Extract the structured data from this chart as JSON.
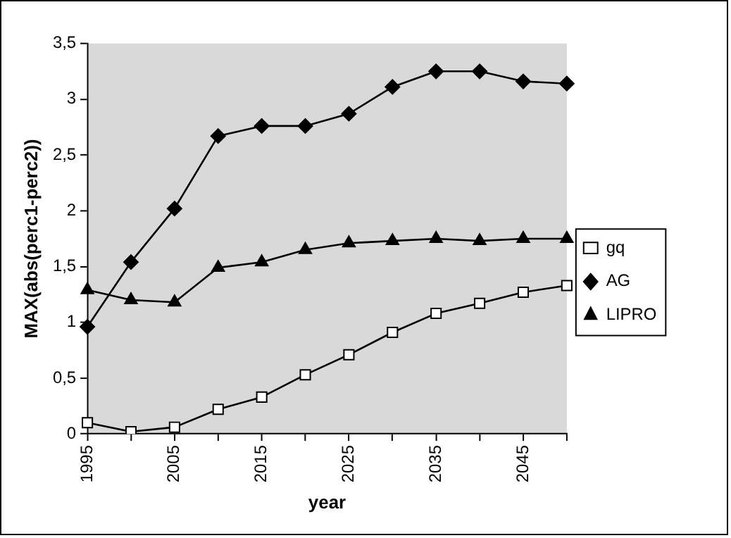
{
  "chart_data": {
    "type": "line",
    "xlabel": "year",
    "ylabel": "MAX(abs(perc1-perc2))",
    "categories": [
      "1995",
      null,
      "2005",
      null,
      "2015",
      null,
      "2025",
      null,
      "2035",
      null,
      "2045",
      null
    ],
    "series": [
      {
        "name": "gq",
        "color": "#000000",
        "marker": "square",
        "values": [
          0.1,
          0.02,
          0.06,
          0.22,
          0.33,
          0.53,
          0.71,
          0.91,
          1.08,
          1.17,
          1.27,
          1.33
        ]
      },
      {
        "name": "AG",
        "color": "#000000",
        "marker": "diamond",
        "values": [
          0.96,
          1.54,
          2.02,
          2.67,
          2.76,
          2.76,
          2.87,
          3.11,
          3.25,
          3.25,
          3.16,
          3.14
        ]
      },
      {
        "name": "LIPRO",
        "color": "#000000",
        "marker": "triangle",
        "values": [
          1.29,
          1.2,
          1.18,
          1.49,
          1.54,
          1.65,
          1.71,
          1.73,
          1.75,
          1.73,
          1.75,
          1.75
        ]
      }
    ],
    "ylim": [
      0,
      3.5
    ],
    "yticks": [
      0,
      {
        "value": 0.5,
        "label": "0,5"
      },
      1,
      {
        "value": 1.5,
        "label": "1,5"
      },
      2,
      {
        "value": 2.5,
        "label": "2,5"
      },
      3,
      {
        "value": 3.5,
        "label": "3,5"
      }
    ],
    "grid": false,
    "legend": "right",
    "line_style": "solid"
  }
}
